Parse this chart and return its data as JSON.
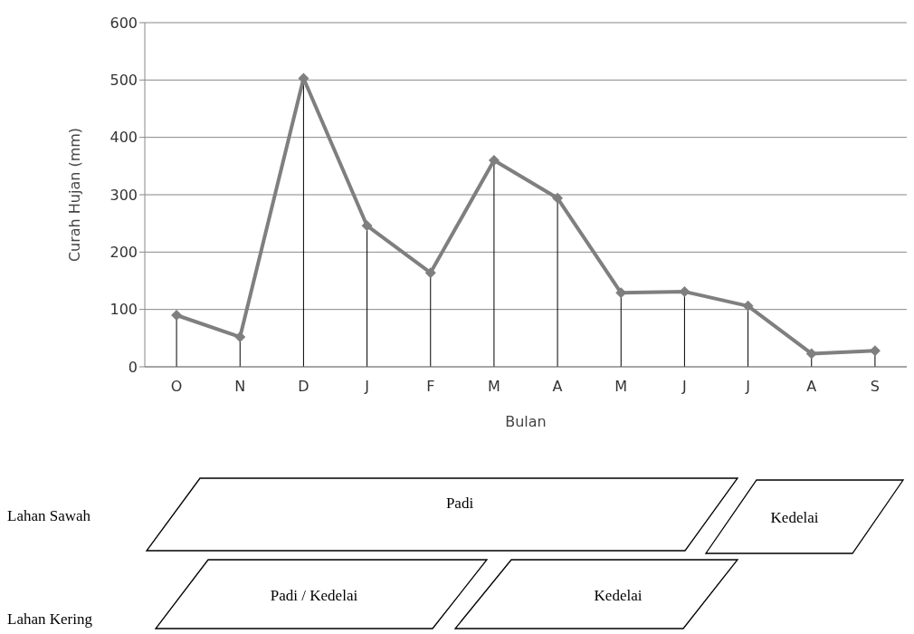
{
  "chart_data": {
    "type": "line",
    "xlabel": "Bulan",
    "ylabel": "Curah Hujan (mm)",
    "categories": [
      "O",
      "N",
      "D",
      "J",
      "F",
      "M",
      "A",
      "M",
      "J",
      "J",
      "A",
      "S"
    ],
    "series": [
      {
        "color": "#7f7f7f",
        "values": [
          90,
          52,
          503,
          246,
          164,
          360,
          294,
          129,
          131,
          106,
          23,
          28
        ],
        "errors": [
          [
            0,
            90
          ],
          [
            0,
            52
          ],
          [
            0,
            503
          ],
          [
            0,
            246
          ],
          [
            0,
            164
          ],
          [
            0,
            360
          ],
          [
            0,
            294
          ],
          [
            0,
            129
          ],
          [
            0,
            131
          ],
          [
            0,
            106
          ],
          [
            0,
            23
          ],
          [
            0,
            28
          ]
        ]
      }
    ],
    "ylim": [
      0,
      600
    ],
    "yticks": [
      0,
      100,
      200,
      300,
      400,
      500,
      600
    ],
    "grid": "y",
    "marker": "diamond",
    "line_style": "solid",
    "annotations": [
      "Lahan Sawah",
      "Padi",
      "Kedelai",
      "Lahan Kering",
      "Padi / Kedelai",
      "Kedelai"
    ]
  }
}
